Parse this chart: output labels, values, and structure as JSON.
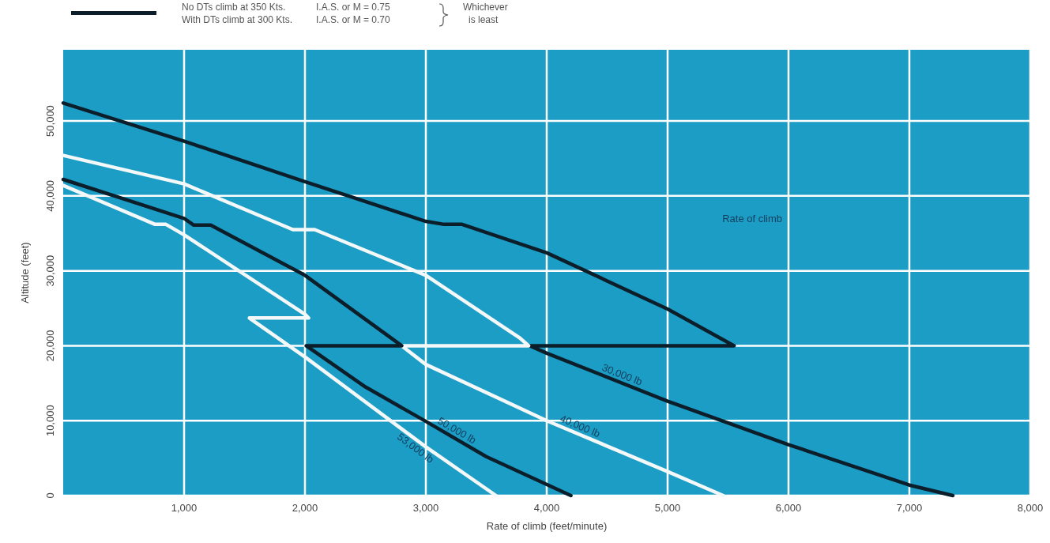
{
  "chart_data": {
    "type": "line",
    "xlabel": "Rate of climb (feet/minute)",
    "ylabel": "Altitude (feet)",
    "xlim": [
      0,
      8000
    ],
    "ylim": [
      0,
      59500
    ],
    "xticks": [
      {
        "value": 1000,
        "label": "1,000"
      },
      {
        "value": 2000,
        "label": "2,000"
      },
      {
        "value": 3000,
        "label": "3,000"
      },
      {
        "value": 4000,
        "label": "4,000"
      },
      {
        "value": 5000,
        "label": "5,000"
      },
      {
        "value": 6000,
        "label": "6,000"
      },
      {
        "value": 7000,
        "label": "7,000"
      },
      {
        "value": 8000,
        "label": "8,000"
      }
    ],
    "yticks": [
      0,
      {
        "value": 10000,
        "label": "10,000"
      },
      {
        "value": 20000,
        "label": "20,000"
      },
      {
        "value": 30000,
        "label": "30,000"
      },
      {
        "value": 40000,
        "label": "40,000"
      },
      {
        "value": 50000,
        "label": "50,000"
      }
    ],
    "grid": true,
    "marker": "none",
    "line_style": "solid",
    "series": [
      {
        "name": "30,000 lb",
        "color": "#0b1e2a",
        "x": [
          0,
          1000,
          2000,
          3000,
          3150,
          3300,
          4000,
          5000,
          5550,
          3860,
          4000,
          5000,
          6000,
          7000,
          7360
        ],
        "values": [
          52400,
          47300,
          41900,
          36600,
          36200,
          36200,
          32400,
          24900,
          20000,
          20000,
          19000,
          12600,
          6800,
          1400,
          0
        ]
      },
      {
        "name": "40,000 lb",
        "color": "#f4f8f8",
        "x": [
          0,
          1000,
          1900,
          2080,
          3000,
          3780,
          3850,
          2800,
          3000,
          4000,
          5000,
          5460
        ],
        "values": [
          45400,
          41600,
          35500,
          35500,
          29400,
          21000,
          20000,
          20000,
          17500,
          10000,
          3200,
          0
        ]
      },
      {
        "name": "50,000 lb",
        "color": "#0b1e2a",
        "x": [
          0,
          1000,
          1080,
          1220,
          2000,
          2800,
          2010,
          2500,
          3000,
          3500,
          4200
        ],
        "values": [
          42200,
          37000,
          36100,
          36100,
          29400,
          20000,
          20000,
          14500,
          9900,
          5200,
          0
        ]
      },
      {
        "name": "53,000 lb",
        "color": "#f4f8f8",
        "x": [
          0,
          760,
          850,
          1000,
          2000,
          2030,
          1540,
          2000,
          3000,
          3580
        ],
        "values": [
          41400,
          36200,
          36200,
          34800,
          24200,
          23700,
          23700,
          18500,
          6500,
          0
        ]
      }
    ],
    "annotations": [
      "No DTs climb at 350 Kts.",
      "I.A.S. or M = 0.75",
      "With DTs climb at 300 Kts.",
      "I.A.S. or M = 0.70",
      "Whichever is least",
      "Rate of climb"
    ]
  }
}
